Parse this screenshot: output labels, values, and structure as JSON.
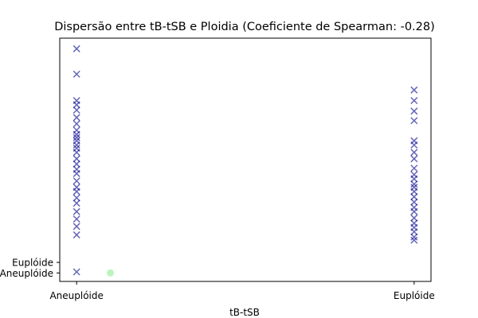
{
  "chart_data": {
    "type": "scatter",
    "title": "Dispersão entre tB-tSB e Ploidia (Coeficiente de Spearman: -0.28)",
    "xlabel": "tB-tSB",
    "ylabel": "",
    "x_categories": [
      "Aneuplóide",
      "Euplóide"
    ],
    "xlim": [
      -0.05,
      1.05
    ],
    "y_tick_labels": [
      "Aneuplóide",
      "Euplóide"
    ],
    "y_tick_values": [
      0,
      1
    ],
    "ylim": [
      -0.8,
      22.2
    ],
    "grid": false,
    "series": [
      {
        "marker": "x",
        "color": "#00008b",
        "points": [
          [
            0,
            21.2
          ],
          [
            0,
            18.8
          ],
          [
            0,
            16.3
          ],
          [
            0,
            15.9
          ],
          [
            0,
            15.4
          ],
          [
            0,
            14.7
          ],
          [
            0,
            14.1
          ],
          [
            0,
            13.5
          ],
          [
            0,
            13.1
          ],
          [
            0,
            12.8
          ],
          [
            0,
            12.5
          ],
          [
            0,
            12.1
          ],
          [
            0,
            11.8
          ],
          [
            0,
            11.4
          ],
          [
            0,
            10.8
          ],
          [
            0,
            10.3
          ],
          [
            0,
            9.8
          ],
          [
            0,
            9.4
          ],
          [
            0,
            8.7
          ],
          [
            0,
            8.1
          ],
          [
            0,
            7.7
          ],
          [
            0,
            7.1
          ],
          [
            0,
            6.6
          ],
          [
            0,
            5.8
          ],
          [
            0,
            5.1
          ],
          [
            0,
            4.4
          ],
          [
            0,
            3.6
          ],
          [
            0,
            0.1
          ],
          [
            1,
            15.3
          ],
          [
            1,
            14.4
          ],
          [
            1,
            12.5
          ],
          [
            1,
            12.1
          ],
          [
            1,
            11.4
          ],
          [
            1,
            10.8
          ],
          [
            1,
            9.9
          ],
          [
            1,
            9.3
          ],
          [
            1,
            8.9
          ],
          [
            1,
            8.4
          ],
          [
            1,
            8.1
          ],
          [
            1,
            7.7
          ],
          [
            1,
            7.2
          ],
          [
            1,
            6.7
          ],
          [
            1,
            6.2
          ],
          [
            1,
            5.8
          ],
          [
            1,
            5.2
          ],
          [
            1,
            4.7
          ],
          [
            1,
            4.3
          ],
          [
            1,
            3.9
          ],
          [
            1,
            3.4
          ],
          [
            1,
            3.1
          ],
          [
            1,
            17.3
          ],
          [
            1,
            16.3
          ]
        ]
      },
      {
        "marker": "circle",
        "color": "#90ee90",
        "points": [
          [
            0.1,
            0
          ]
        ]
      }
    ]
  }
}
